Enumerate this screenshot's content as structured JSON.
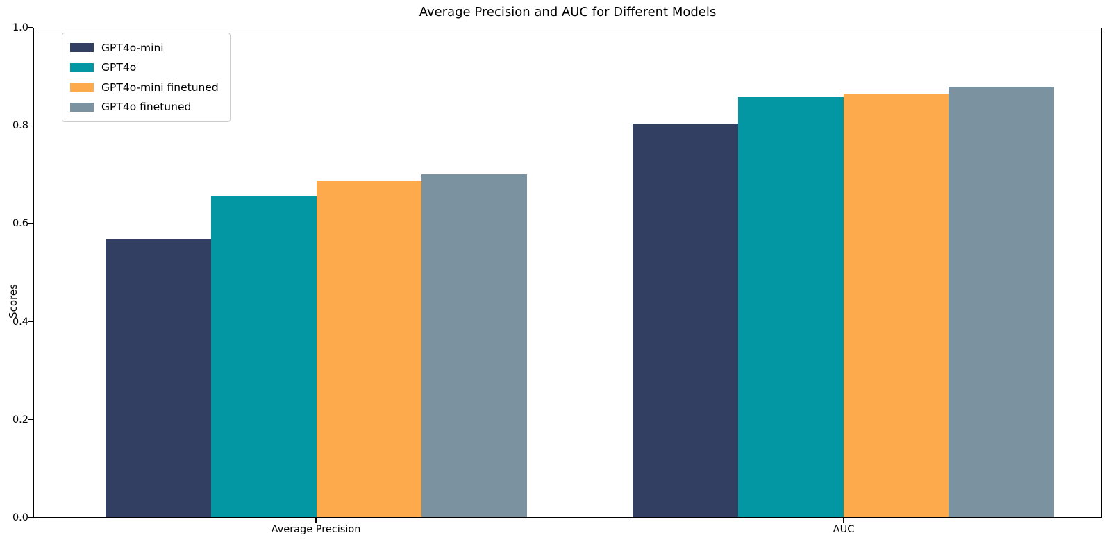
{
  "figure": {
    "background_color": "#ffffff",
    "axis_color": "#000000"
  },
  "chart_data": {
    "type": "bar",
    "title": "Average Precision and AUC for Different Models",
    "xlabel": "",
    "ylabel": "Scores",
    "categories": [
      "Average Precision",
      "AUC"
    ],
    "series": [
      {
        "name": "GPT4o-mini",
        "color": "#323e62",
        "values": [
          0.568,
          0.806
        ]
      },
      {
        "name": "GPT4o",
        "color": "#0397a3",
        "values": [
          0.656,
          0.859
        ]
      },
      {
        "name": "GPT4o-mini finetuned",
        "color": "#fcaa4b",
        "values": [
          0.688,
          0.866
        ]
      },
      {
        "name": "GPT4o finetuned",
        "color": "#7b93a0",
        "values": [
          0.702,
          0.88
        ]
      }
    ],
    "ylim": [
      0.0,
      1.0
    ],
    "yticks": [
      "0.0",
      "0.2",
      "0.4",
      "0.6",
      "0.8",
      "1.0"
    ],
    "grid": false,
    "legend_position": "upper left"
  }
}
